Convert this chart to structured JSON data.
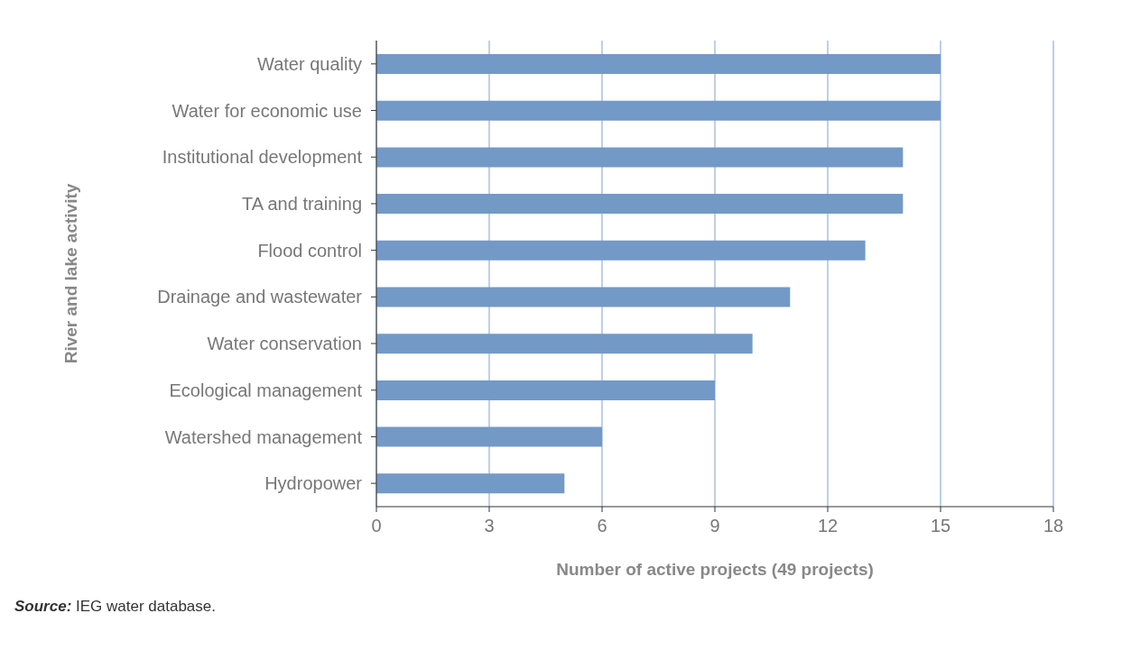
{
  "chart_data": {
    "type": "bar",
    "orientation": "horizontal",
    "categories": [
      "Water quality",
      "Water for economic use",
      "Institutional development",
      "TA and training",
      "Flood control",
      "Drainage and wastewater",
      "Water conservation",
      "Ecological management",
      "Watershed management",
      "Hydropower"
    ],
    "values": [
      15,
      15,
      14,
      14,
      13,
      11,
      10,
      9,
      6,
      5
    ],
    "color": "#7399c6",
    "xlim": [
      0,
      18
    ],
    "xticks": [
      0,
      3,
      6,
      9,
      12,
      15,
      18
    ],
    "xlabel": "Number of active projects (49 projects)",
    "ylabel": "River and lake activity",
    "grid": "x",
    "annotations": [
      "Source: IEG water database."
    ]
  }
}
